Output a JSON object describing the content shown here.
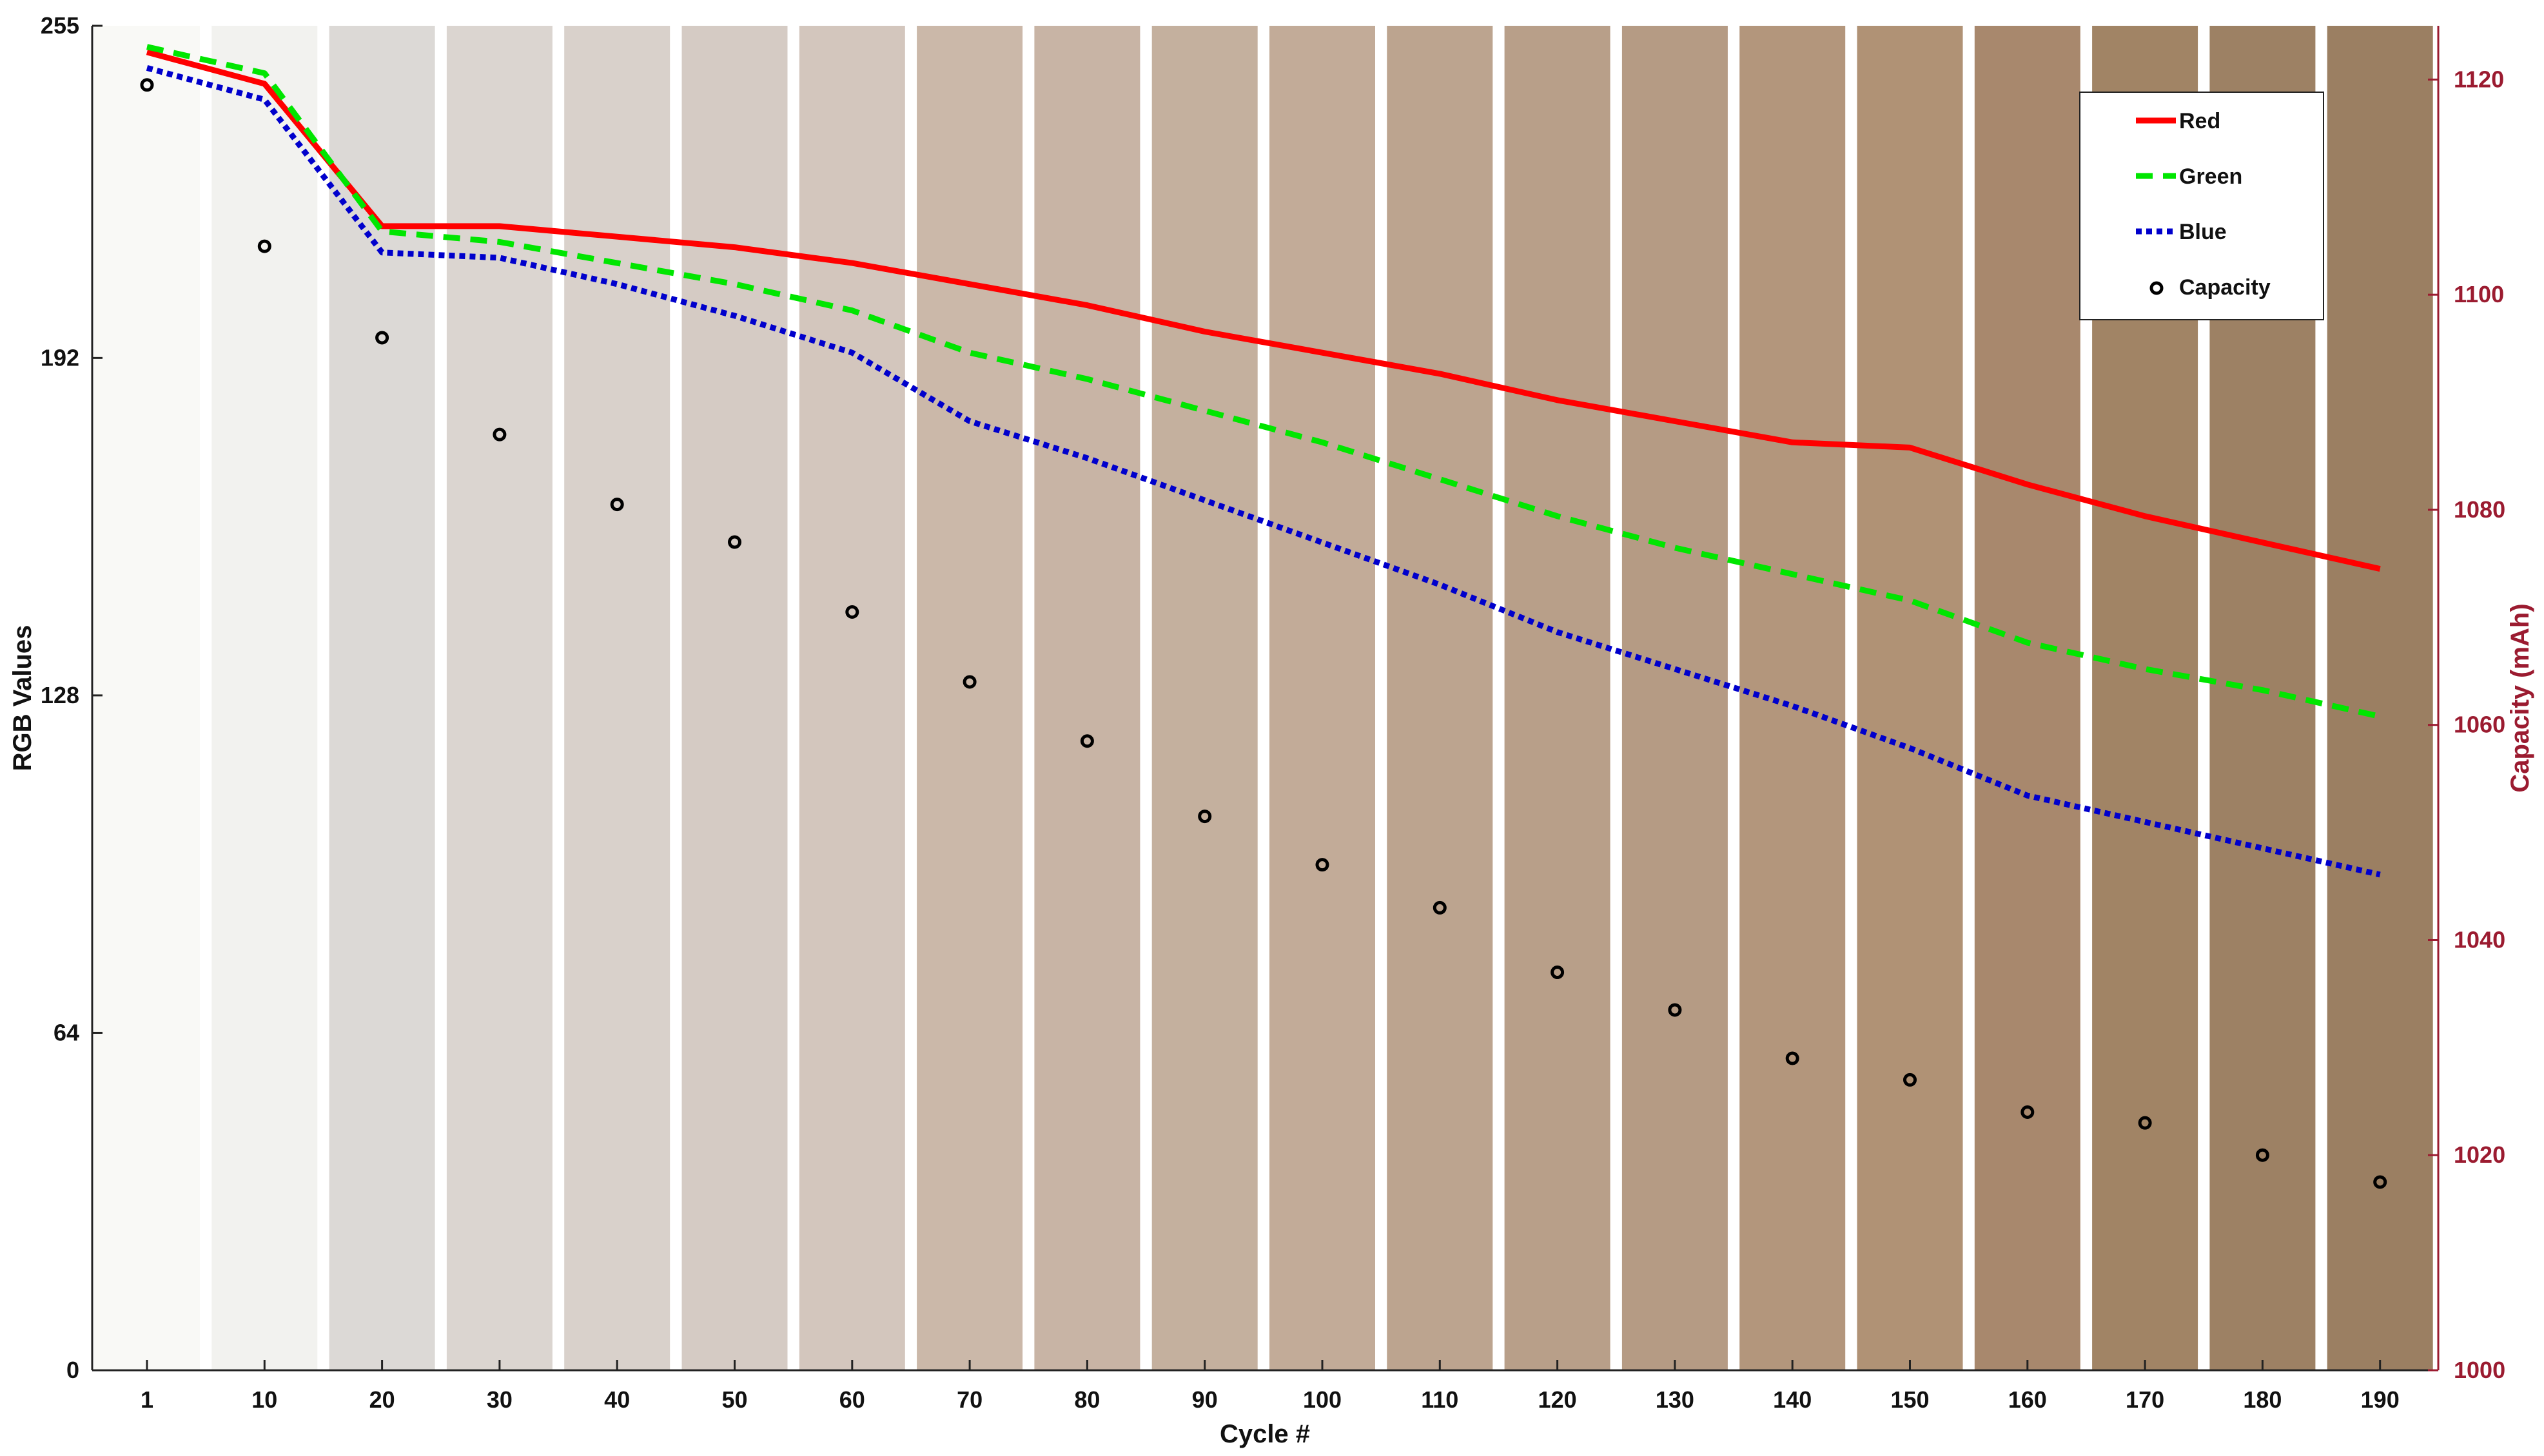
{
  "chart_data": {
    "type": "line",
    "title": "",
    "xlabel": "Cycle #",
    "ylabel": "RGB Values",
    "ylabel_right": "Capacity (mAh)",
    "categories": [
      "1",
      "10",
      "20",
      "30",
      "40",
      "50",
      "60",
      "70",
      "80",
      "90",
      "100",
      "110",
      "120",
      "130",
      "140",
      "150",
      "160",
      "170",
      "180",
      "190"
    ],
    "ylim": [
      0,
      255
    ],
    "ylim_right": [
      1000,
      1125
    ],
    "yticks": [
      "0",
      "64",
      "128",
      "192",
      "255"
    ],
    "yticks_right": [
      "1000",
      "1020",
      "1040",
      "1060",
      "1080",
      "1100",
      "1120"
    ],
    "swatch_colors": [
      "#f9f9f6",
      "#f2f2ef",
      "#dcd9d6",
      "#dbd5d0",
      "#d9d1cb",
      "#d5cbc4",
      "#d3c6bd",
      "#cbb8a9",
      "#c8b4a5",
      "#c4b09e",
      "#c2ab98",
      "#bca48f",
      "#b89f89",
      "#b59b84",
      "#b3967c",
      "#b09275",
      "#a8886d",
      "#a18465",
      "#9d8164",
      "#9b7f62"
    ],
    "series": [
      {
        "name": "Red",
        "color": "#ff0000",
        "style": "solid",
        "axis": "left",
        "values": [
          250,
          244,
          217,
          217,
          215,
          213,
          210,
          206,
          202,
          197,
          193,
          189,
          184,
          180,
          176,
          175,
          168,
          162,
          157,
          152
        ]
      },
      {
        "name": "Green",
        "color": "#00e600",
        "style": "dashed",
        "axis": "left",
        "values": [
          251,
          246,
          216,
          214,
          210,
          206,
          201,
          193,
          188,
          182,
          176,
          169,
          162,
          156,
          151,
          146,
          138,
          133,
          129,
          124
        ]
      },
      {
        "name": "Blue",
        "color": "#0000cc",
        "style": "dotted",
        "axis": "left",
        "values": [
          247,
          241,
          212,
          211,
          206,
          200,
          193,
          180,
          173,
          165,
          157,
          149,
          140,
          133,
          126,
          118,
          109,
          104,
          99,
          94
        ]
      },
      {
        "name": "Capacity",
        "color": "#000000",
        "style": "markers",
        "axis": "right",
        "values": [
          1119.5,
          1104.5,
          1096,
          1087,
          1080.5,
          1077,
          1070.5,
          1064,
          1058.5,
          1051.5,
          1047,
          1043,
          1037,
          1033.5,
          1029,
          1027,
          1024,
          1023,
          1020,
          1017.5
        ]
      }
    ],
    "legend": {
      "position": "top-right",
      "entries": [
        "Red",
        "Green",
        "Blue",
        "Capacity"
      ]
    }
  }
}
